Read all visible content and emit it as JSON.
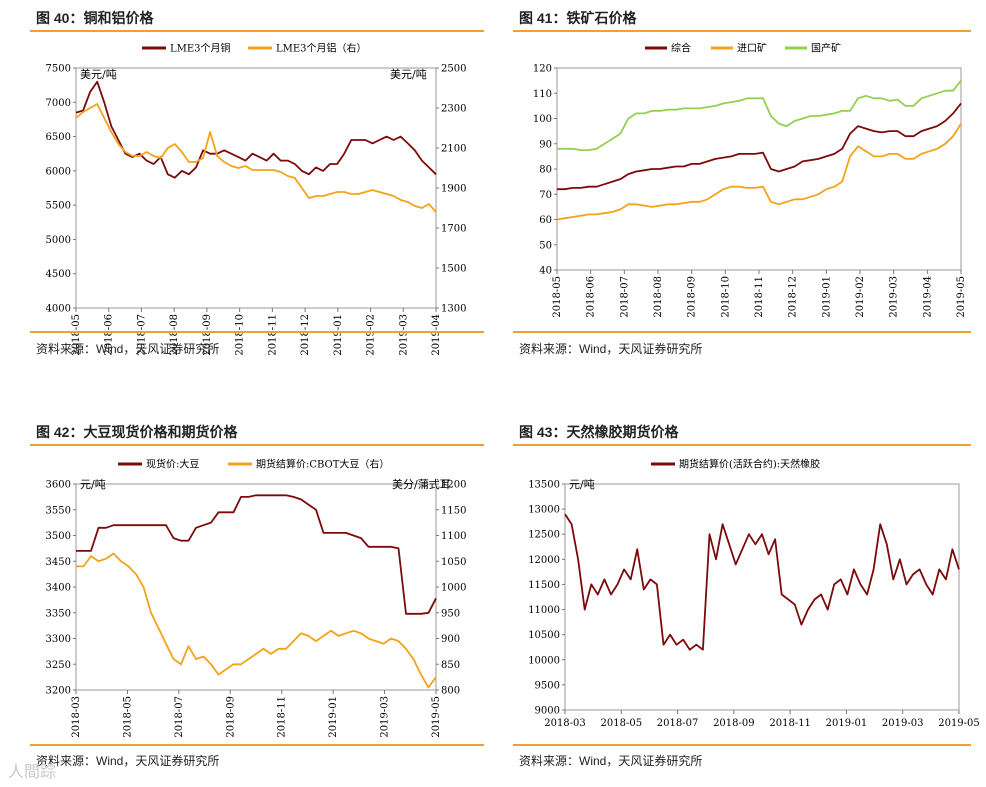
{
  "figures": [
    {
      "title": "图 40：铜和铝价格",
      "source": "资料来源：Wind，天风证券研究所"
    },
    {
      "title": "图 41：铁矿石价格",
      "source": "资料来源：Wind，天风证券研究所"
    },
    {
      "title": "图 42：大豆现货价格和期货价格",
      "source": "资料来源：Wind，天风证券研究所"
    },
    {
      "title": "图 43：天然橡胶期货价格",
      "source": "资料来源：Wind，天风证券研究所"
    }
  ],
  "watermark": "人間踪",
  "colors": {
    "dark_red": "#7b0a0a",
    "orange": "#f5a21b",
    "green": "#92d050",
    "rule": "#f0a030"
  },
  "chart_data": [
    {
      "type": "line",
      "title": "图 40：铜和铝价格",
      "left_unit": "美元/吨",
      "right_unit": "美元/吨",
      "ylim": [
        4000,
        7500
      ],
      "y_ticks": [
        "7500",
        "7000",
        "6500",
        "6000",
        "5500",
        "5000",
        "4500",
        "4000"
      ],
      "y2lim": [
        1300,
        2500
      ],
      "y2_ticks": [
        "2500",
        "2300",
        "2100",
        "1900",
        "1700",
        "1500",
        "1300"
      ],
      "x_ticks": [
        "2018-05",
        "2018-06",
        "2018-07",
        "2018-08",
        "2018-09",
        "2018-10",
        "2018-11",
        "2018-12",
        "2019-01",
        "2019-02",
        "2019-03",
        "2019-04"
      ],
      "series": [
        {
          "name": "LME3个月铜",
          "axis": "left",
          "color": "#7b0a0a",
          "values": [
            6850,
            6880,
            7150,
            7300,
            7000,
            6650,
            6450,
            6250,
            6200,
            6250,
            6150,
            6100,
            6200,
            5950,
            5900,
            6000,
            5950,
            6050,
            6300,
            6250,
            6250,
            6300,
            6250,
            6200,
            6150,
            6250,
            6200,
            6150,
            6250,
            6150,
            6150,
            6100,
            6000,
            5950,
            6050,
            6000,
            6100,
            6100,
            6250,
            6450,
            6450,
            6450,
            6400,
            6450,
            6500,
            6450,
            6500,
            6400,
            6300,
            6150,
            6050,
            5950
          ]
        },
        {
          "name": "LME3个月铝（右）",
          "axis": "right",
          "color": "#f5a21b",
          "values": [
            2250,
            2280,
            2300,
            2320,
            2250,
            2180,
            2120,
            2080,
            2060,
            2060,
            2080,
            2060,
            2050,
            2100,
            2120,
            2080,
            2030,
            2030,
            2050,
            2180,
            2060,
            2030,
            2010,
            2000,
            2010,
            1990,
            1990,
            1990,
            1990,
            1980,
            1960,
            1950,
            1900,
            1850,
            1860,
            1860,
            1870,
            1880,
            1880,
            1870,
            1870,
            1880,
            1890,
            1880,
            1870,
            1860,
            1840,
            1830,
            1810,
            1800,
            1820,
            1780
          ]
        }
      ]
    },
    {
      "type": "line",
      "title": "图 41：铁矿石价格",
      "ylim": [
        40,
        120
      ],
      "y_ticks": [
        "120",
        "110",
        "100",
        "90",
        "80",
        "70",
        "60",
        "50",
        "40"
      ],
      "x_ticks": [
        "2018-05",
        "2018-06",
        "2018-07",
        "2018-08",
        "2018-09",
        "2018-10",
        "2018-11",
        "2018-12",
        "2019-01",
        "2019-02",
        "2019-03",
        "2019-04",
        "2019-05"
      ],
      "series": [
        {
          "name": "综合",
          "color": "#7b0a0a",
          "values": [
            72,
            72,
            72.5,
            72.5,
            73,
            73,
            74,
            75,
            76,
            78,
            79,
            79.5,
            80,
            80,
            80.5,
            81,
            81,
            82,
            82,
            83,
            84,
            84.5,
            85,
            86,
            86,
            86,
            86.5,
            80,
            79,
            80,
            81,
            83,
            83.5,
            84,
            85,
            86,
            88,
            94,
            97,
            96,
            95,
            94.5,
            95,
            95,
            93,
            93,
            95,
            96,
            97,
            99,
            102,
            106
          ]
        },
        {
          "name": "进口矿",
          "color": "#f5a21b",
          "values": [
            60,
            60.5,
            61,
            61.5,
            62,
            62,
            62.5,
            63,
            64,
            66,
            66,
            65.5,
            65,
            65.5,
            66,
            66,
            66.5,
            67,
            67,
            68,
            70,
            72,
            73,
            73,
            72.5,
            72.5,
            73,
            67,
            66,
            67,
            68,
            68,
            69,
            70,
            72,
            73,
            75,
            85,
            89,
            87,
            85,
            85,
            86,
            86,
            84,
            84,
            86,
            87,
            88,
            90,
            93,
            98
          ]
        },
        {
          "name": "国产矿",
          "color": "#92d050",
          "values": [
            88,
            88,
            88,
            87.5,
            87.5,
            88,
            90,
            92,
            94,
            100,
            102,
            102,
            103,
            103,
            103.5,
            103.5,
            104,
            104,
            104,
            104.5,
            105,
            106,
            106.5,
            107,
            108,
            108,
            108,
            101,
            98,
            97,
            99,
            100,
            101,
            101,
            101.5,
            102,
            103,
            103,
            108,
            109,
            108,
            108,
            107,
            107.5,
            105,
            105,
            108,
            109,
            110,
            111,
            111,
            115
          ]
        }
      ]
    },
    {
      "type": "line",
      "title": "图 42：大豆现货价格和期货价格",
      "left_unit": "元/吨",
      "right_unit": "美分/蒲式耳",
      "ylim": [
        3200,
        3600
      ],
      "y_ticks": [
        "3600",
        "3550",
        "3500",
        "3450",
        "3400",
        "3350",
        "3300",
        "3250",
        "3200"
      ],
      "y2lim": [
        800,
        1200
      ],
      "y2_ticks": [
        "1200",
        "1150",
        "1100",
        "1050",
        "1000",
        "950",
        "900",
        "850",
        "800"
      ],
      "x_ticks": [
        "2018-03",
        "2018-05",
        "2018-07",
        "2018-09",
        "2018-11",
        "2019-01",
        "2019-03",
        "2019-05"
      ],
      "series": [
        {
          "name": "现货价:大豆",
          "axis": "left",
          "color": "#7b0a0a",
          "values": [
            3470,
            3470,
            3470,
            3515,
            3515,
            3520,
            3520,
            3520,
            3520,
            3520,
            3520,
            3520,
            3520,
            3495,
            3490,
            3490,
            3515,
            3520,
            3525,
            3545,
            3545,
            3545,
            3575,
            3575,
            3578,
            3578,
            3578,
            3578,
            3578,
            3575,
            3570,
            3560,
            3550,
            3505,
            3505,
            3505,
            3505,
            3500,
            3495,
            3478,
            3478,
            3478,
            3478,
            3475,
            3348,
            3348,
            3348,
            3350,
            3378
          ]
        },
        {
          "name": "期货结算价:CBOT大豆（右）",
          "axis": "right",
          "color": "#f5a21b",
          "values": [
            1040,
            1040,
            1060,
            1050,
            1055,
            1065,
            1050,
            1040,
            1025,
            1000,
            950,
            920,
            890,
            860,
            850,
            885,
            860,
            865,
            850,
            830,
            840,
            850,
            850,
            860,
            870,
            880,
            870,
            880,
            880,
            895,
            910,
            905,
            895,
            905,
            915,
            905,
            910,
            915,
            910,
            900,
            895,
            890,
            900,
            895,
            880,
            860,
            830,
            805,
            825
          ]
        }
      ]
    },
    {
      "type": "line",
      "title": "图 43：天然橡胶期货价格",
      "left_unit": "元/吨",
      "ylim": [
        9000,
        13500
      ],
      "y_ticks": [
        "13500",
        "13000",
        "12500",
        "12000",
        "11500",
        "11000",
        "10500",
        "10000",
        "9500",
        "9000"
      ],
      "x_ticks": [
        "2018-03",
        "2018-05",
        "2018-07",
        "2018-09",
        "2018-11",
        "2019-01",
        "2019-03",
        "2019-05"
      ],
      "series": [
        {
          "name": "期货结算价(活跃合约):天然橡胶",
          "color": "#7b0a0a",
          "values": [
            12900,
            12700,
            12000,
            11000,
            11500,
            11300,
            11600,
            11300,
            11500,
            11800,
            11600,
            12200,
            11400,
            11600,
            11500,
            10300,
            10500,
            10300,
            10400,
            10200,
            10300,
            10200,
            12500,
            12000,
            12700,
            12300,
            11900,
            12200,
            12500,
            12300,
            12500,
            12100,
            12400,
            11300,
            11200,
            11100,
            10700,
            11000,
            11200,
            11300,
            11000,
            11500,
            11600,
            11300,
            11800,
            11500,
            11300,
            11800,
            12700,
            12300,
            11600,
            12000,
            11500,
            11700,
            11800,
            11500,
            11300,
            11800,
            11600,
            12200,
            11800
          ]
        }
      ]
    }
  ]
}
